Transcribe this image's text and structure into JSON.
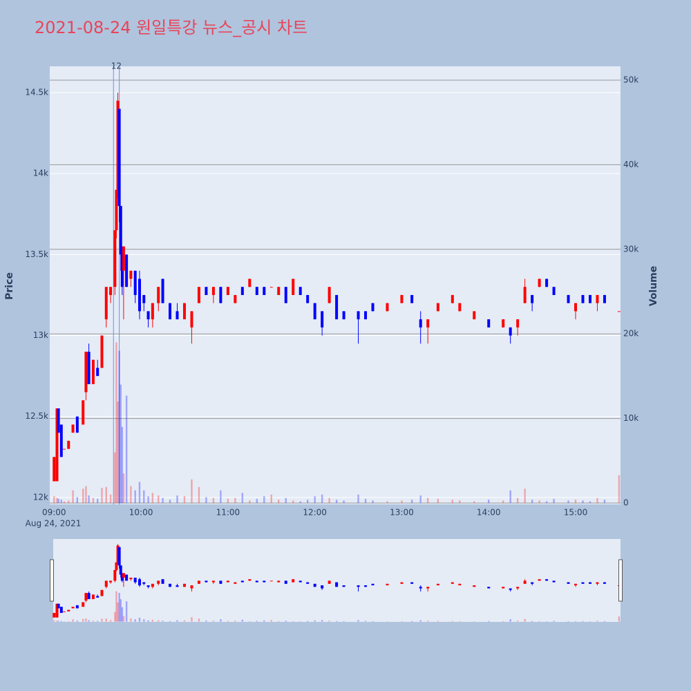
{
  "chart_data": {
    "type": "candlestick",
    "title": "2021-08-24 원일특강 뉴스_공시 차트",
    "x": [
      "09:00",
      "09:02",
      "09:03",
      "09:05",
      "09:07",
      "09:10",
      "09:13",
      "09:16",
      "09:20",
      "09:22",
      "09:24",
      "09:27",
      "09:30",
      "09:33",
      "09:36",
      "09:39",
      "09:42",
      "09:43",
      "09:44",
      "09:45",
      "09:46",
      "09:47",
      "09:48",
      "09:50",
      "09:53",
      "09:56",
      "09:59",
      "10:02",
      "10:05",
      "10:08",
      "10:12",
      "10:15",
      "10:20",
      "10:25",
      "10:30",
      "10:35",
      "10:40",
      "10:45",
      "10:50",
      "10:55",
      "11:00",
      "11:05",
      "11:10",
      "11:15",
      "11:20",
      "11:25",
      "11:30",
      "11:35",
      "11:40",
      "11:45",
      "11:50",
      "11:55",
      "12:00",
      "12:05",
      "12:10",
      "12:15",
      "12:20",
      "12:30",
      "12:35",
      "12:40",
      "12:50",
      "13:00",
      "13:07",
      "13:13",
      "13:18",
      "13:25",
      "13:35",
      "13:40",
      "13:50",
      "14:00",
      "14:10",
      "14:15",
      "14:20",
      "14:25",
      "14:30",
      "14:35",
      "14:40",
      "14:45",
      "14:55",
      "15:00",
      "15:05",
      "15:10",
      "15:15",
      "15:20",
      "15:30"
    ],
    "open": [
      12100,
      12100,
      12550,
      12450,
      12300,
      12300,
      12400,
      12500,
      12450,
      12650,
      12900,
      12700,
      12800,
      12800,
      13100,
      13250,
      13300,
      13650,
      13900,
      14400,
      13800,
      13500,
      13400,
      13500,
      13350,
      13400,
      13350,
      13250,
      13150,
      13100,
      13200,
      13350,
      13200,
      13150,
      13100,
      13050,
      13200,
      13300,
      13250,
      13300,
      13250,
      13200,
      13300,
      13300,
      13300,
      13300,
      13300,
      13250,
      13300,
      13250,
      13300,
      13250,
      13200,
      13150,
      13200,
      13250,
      13150,
      13150,
      13150,
      13200,
      13150,
      13200,
      13250,
      13100,
      13050,
      13150,
      13200,
      13150,
      13100,
      13100,
      13050,
      13050,
      13050,
      13200,
      13250,
      13300,
      13350,
      13300,
      13250,
      13150,
      13250,
      13250,
      13200,
      13250,
      13150
    ],
    "high": [
      12250,
      12550,
      12550,
      12450,
      12300,
      12350,
      12450,
      12500,
      12600,
      12900,
      12950,
      12850,
      12850,
      13000,
      13300,
      13300,
      13650,
      13900,
      14500,
      14400,
      13800,
      13550,
      13550,
      13500,
      13400,
      13400,
      13400,
      13250,
      13150,
      13200,
      13300,
      13350,
      13200,
      13200,
      13200,
      13150,
      13300,
      13300,
      13300,
      13300,
      13300,
      13250,
      13300,
      13350,
      13300,
      13300,
      13300,
      13300,
      13300,
      13350,
      13300,
      13250,
      13200,
      13150,
      13300,
      13250,
      13150,
      13150,
      13150,
      13200,
      13200,
      13250,
      13250,
      13150,
      13100,
      13200,
      13250,
      13200,
      13150,
      13100,
      13100,
      13050,
      13100,
      13350,
      13250,
      13350,
      13350,
      13300,
      13250,
      13200,
      13250,
      13250,
      13250,
      13250,
      13150
    ],
    "low": [
      12100,
      12100,
      12400,
      12250,
      12300,
      12300,
      12400,
      12400,
      12450,
      12600,
      12700,
      12700,
      12750,
      12800,
      13050,
      13200,
      13250,
      13600,
      13850,
      13700,
      13400,
      13250,
      13100,
      13300,
      13300,
      13200,
      13100,
      13150,
      13050,
      13050,
      13150,
      13200,
      13100,
      13100,
      13100,
      12950,
      13200,
      13250,
      13200,
      13200,
      13250,
      13200,
      13250,
      13300,
      13250,
      13250,
      13300,
      13250,
      13200,
      13250,
      13250,
      13200,
      13100,
      13000,
      13200,
      13100,
      13100,
      12950,
      13100,
      13150,
      13150,
      13200,
      13200,
      12950,
      12950,
      13150,
      13200,
      13150,
      13100,
      13050,
      13050,
      12950,
      13000,
      13200,
      13150,
      13300,
      13300,
      13250,
      13200,
      13100,
      13200,
      13200,
      13150,
      13200,
      13150
    ],
    "close": [
      12250,
      12550,
      12400,
      12250,
      12300,
      12350,
      12450,
      12400,
      12600,
      12900,
      12700,
      12850,
      12750,
      13000,
      13300,
      13300,
      13650,
      13900,
      14450,
      13800,
      13500,
      13300,
      13550,
      13300,
      13400,
      13250,
      13150,
      13200,
      13100,
      13200,
      13300,
      13200,
      13100,
      13100,
      13200,
      13150,
      13300,
      13250,
      13300,
      13200,
      13300,
      13250,
      13250,
      13350,
      13250,
      13250,
      13300,
      13300,
      13200,
      13350,
      13250,
      13200,
      13100,
      13050,
      13300,
      13100,
      13100,
      13100,
      13100,
      13150,
      13200,
      13250,
      13200,
      13050,
      13100,
      13200,
      13250,
      13200,
      13150,
      13050,
      13100,
      13000,
      13100,
      13300,
      13200,
      13350,
      13300,
      13250,
      13200,
      13200,
      13200,
      13200,
      13250,
      13200,
      13150
    ],
    "volume": [
      800,
      600,
      500,
      400,
      200,
      300,
      1500,
      700,
      1700,
      2000,
      900,
      600,
      500,
      1800,
      1900,
      1000,
      6000,
      19000,
      12000,
      18000,
      14000,
      9000,
      3500,
      12700,
      2000,
      1500,
      2500,
      1500,
      800,
      1200,
      900,
      600,
      400,
      900,
      800,
      2800,
      1900,
      700,
      600,
      1500,
      500,
      600,
      1200,
      300,
      500,
      800,
      1000,
      400,
      600,
      300,
      200,
      400,
      800,
      1000,
      600,
      400,
      300,
      1000,
      500,
      300,
      200,
      300,
      400,
      900,
      600,
      500,
      400,
      300,
      200,
      400,
      300,
      1500,
      600,
      1700,
      400,
      300,
      200,
      500,
      300,
      400,
      300,
      200,
      600,
      400,
      3300
    ],
    "increasing_color": "#ff0000",
    "decreasing_color": "#0000ff",
    "xlim": [
      "08:57",
      "15:31"
    ],
    "xticks": [
      "09:00",
      "10:00",
      "11:00",
      "12:00",
      "13:00",
      "14:00",
      "15:00"
    ],
    "x_sublabel": "Aug 24, 2021",
    "ylim": [
      11957,
      14662
    ],
    "yticks": [
      {
        "value": 12000,
        "label": "12k"
      },
      {
        "value": 12500,
        "label": "12.5k"
      },
      {
        "value": 13000,
        "label": "13k"
      },
      {
        "value": 13500,
        "label": "13.5k"
      },
      {
        "value": 14000,
        "label": "14k"
      },
      {
        "value": 14500,
        "label": "14.5k"
      }
    ],
    "y2lim": [
      -163,
      51634
    ],
    "y2ticks": [
      0,
      {
        "value": 10000,
        "label": "10k"
      },
      {
        "value": 20000,
        "label": "20k"
      },
      {
        "value": 30000,
        "label": "30k"
      },
      {
        "value": 40000,
        "label": "40k"
      },
      {
        "value": 50000,
        "label": "50k"
      }
    ],
    "ylabel": "Price",
    "y2label": "Volume",
    "annotation": {
      "text": "12",
      "x": [
        "09:41",
        "09:45"
      ]
    }
  }
}
